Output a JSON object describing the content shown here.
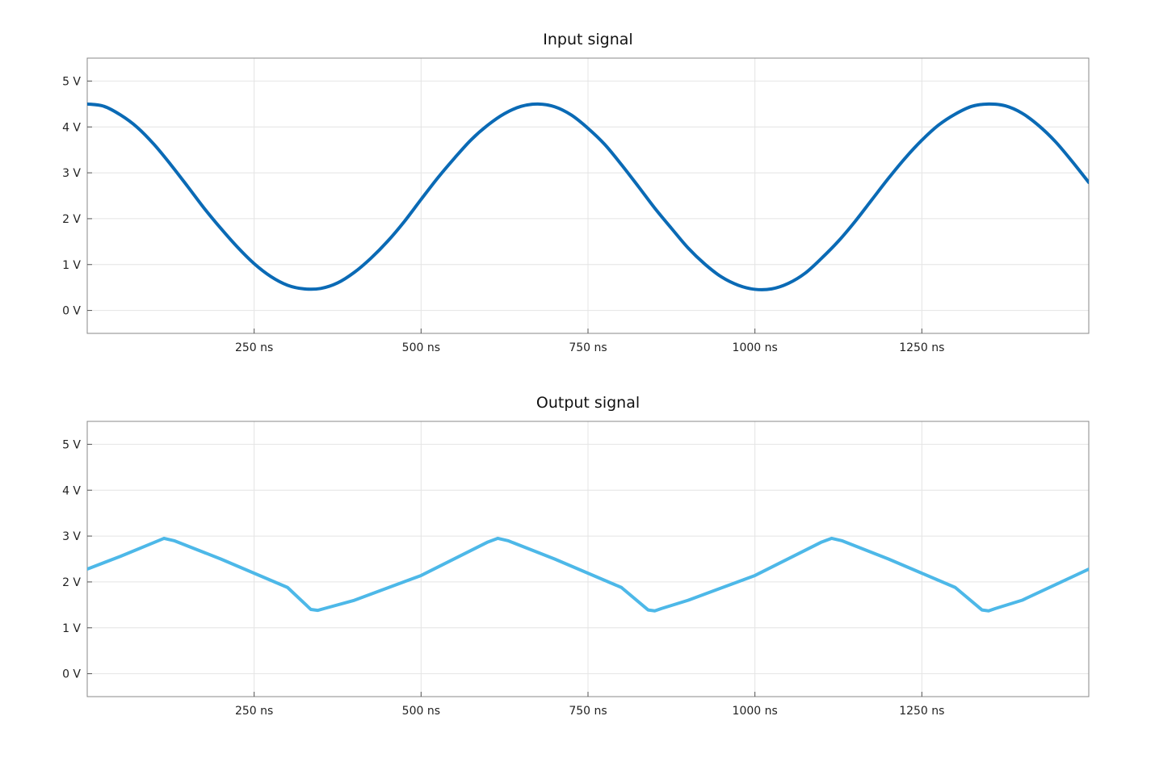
{
  "chart_data": [
    {
      "type": "line",
      "title": "Input signal",
      "xlabel": "",
      "ylabel": "",
      "xlim": [
        0,
        1500
      ],
      "ylim": [
        -0.5,
        5.5
      ],
      "x_ticks": [
        250,
        500,
        750,
        1000,
        1250
      ],
      "x_tick_labels": [
        "250 ns",
        "500 ns",
        "750 ns",
        "1000 ns",
        "1250 ns"
      ],
      "y_ticks": [
        0,
        1,
        2,
        3,
        4,
        5
      ],
      "y_tick_labels": [
        "0 V",
        "1 V",
        "2 V",
        "3 V",
        "4 V",
        "5 V"
      ],
      "grid": true,
      "series": [
        {
          "color": "#0a6ab5",
          "x": [
            0,
            25,
            50,
            75,
            100,
            125,
            150,
            175,
            200,
            225,
            250,
            275,
            300,
            325,
            350,
            375,
            400,
            425,
            450,
            475,
            500,
            525,
            550,
            575,
            600,
            625,
            650,
            675,
            700,
            725,
            750,
            775,
            800,
            825,
            850,
            875,
            900,
            925,
            950,
            975,
            1000,
            1025,
            1050,
            1075,
            1100,
            1125,
            1150,
            1175,
            1200,
            1225,
            1250,
            1275,
            1300,
            1325,
            1350,
            1375,
            1400,
            1425,
            1450,
            1475,
            1500
          ],
          "values": [
            4.5,
            4.45,
            4.26,
            3.99,
            3.62,
            3.18,
            2.71,
            2.23,
            1.79,
            1.38,
            1.02,
            0.74,
            0.55,
            0.47,
            0.48,
            0.6,
            0.83,
            1.14,
            1.51,
            1.94,
            2.42,
            2.89,
            3.32,
            3.72,
            4.04,
            4.29,
            4.45,
            4.5,
            4.44,
            4.26,
            3.97,
            3.62,
            3.18,
            2.71,
            2.23,
            1.79,
            1.36,
            1.01,
            0.73,
            0.55,
            0.46,
            0.47,
            0.59,
            0.81,
            1.14,
            1.51,
            1.94,
            2.41,
            2.88,
            3.32,
            3.71,
            4.04,
            4.28,
            4.45,
            4.5,
            4.46,
            4.3,
            4.03,
            3.68,
            3.25,
            2.79
          ]
        }
      ]
    },
    {
      "type": "line",
      "title": "Output signal",
      "xlabel": "",
      "ylabel": "",
      "xlim": [
        0,
        1500
      ],
      "ylim": [
        -0.5,
        5.5
      ],
      "x_ticks": [
        250,
        500,
        750,
        1000,
        1250
      ],
      "x_tick_labels": [
        "250 ns",
        "500 ns",
        "750 ns",
        "1000 ns",
        "1250 ns"
      ],
      "y_ticks": [
        0,
        1,
        2,
        3,
        4,
        5
      ],
      "y_tick_labels": [
        "0 V",
        "1 V",
        "2 V",
        "3 V",
        "4 V",
        "5 V"
      ],
      "grid": true,
      "series": [
        {
          "color": "#4db8e8",
          "x": [
            0,
            50,
            100,
            115,
            130,
            200,
            250,
            300,
            335,
            345,
            355,
            400,
            500,
            600,
            615,
            630,
            700,
            750,
            800,
            840,
            850,
            860,
            900,
            1000,
            1100,
            1115,
            1130,
            1200,
            1250,
            1300,
            1340,
            1350,
            1360,
            1400,
            1500
          ],
          "values": [
            2.28,
            2.56,
            2.86,
            2.95,
            2.9,
            2.5,
            2.19,
            1.88,
            1.4,
            1.38,
            1.42,
            1.6,
            2.14,
            2.87,
            2.95,
            2.9,
            2.5,
            2.19,
            1.88,
            1.39,
            1.37,
            1.42,
            1.6,
            2.14,
            2.87,
            2.95,
            2.9,
            2.5,
            2.19,
            1.88,
            1.39,
            1.37,
            1.42,
            1.6,
            2.28
          ]
        }
      ]
    }
  ]
}
